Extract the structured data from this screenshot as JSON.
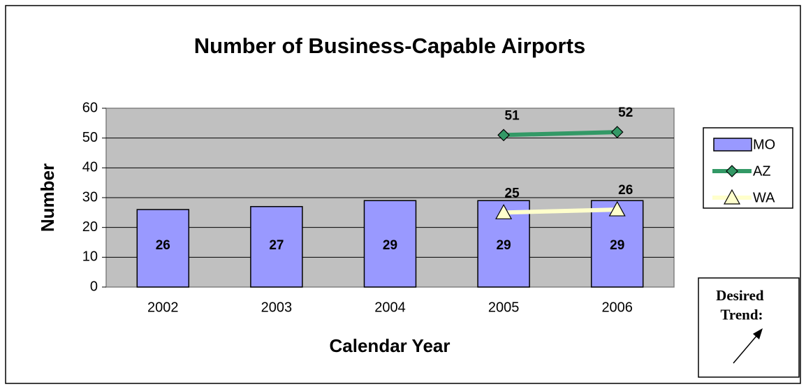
{
  "chart_data": {
    "type": "bar",
    "title": "Number of Business-Capable Airports",
    "x_label": "Calendar Year",
    "y_label": "Number",
    "categories": [
      "2002",
      "2003",
      "2004",
      "2005",
      "2006"
    ],
    "series": [
      {
        "name": "MO",
        "type": "bar",
        "color": "#9999ff",
        "values": [
          26,
          27,
          29,
          29,
          29
        ]
      },
      {
        "name": "AZ",
        "type": "line",
        "marker": "diamond",
        "color": "#339966",
        "values": [
          null,
          null,
          null,
          51,
          52
        ]
      },
      {
        "name": "WA",
        "type": "line",
        "marker": "triangle",
        "color": "#ffffcc",
        "values": [
          null,
          null,
          null,
          25,
          26
        ]
      }
    ],
    "ylim": [
      0,
      60
    ],
    "yticks": [
      0,
      10,
      20,
      30,
      40,
      50,
      60
    ],
    "grid": true,
    "legend": "right",
    "annotation": [
      "Desired",
      "Trend:"
    ]
  }
}
